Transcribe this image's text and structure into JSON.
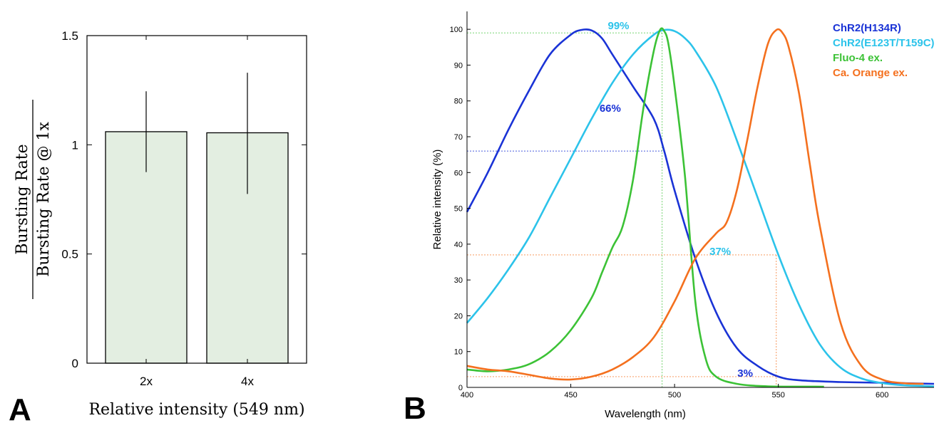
{
  "panels": {
    "a_label": "A",
    "b_label": "B"
  },
  "colors": {
    "bar_fill": "#e3eee1",
    "chr2_h134r": "#1a33d6",
    "chr2_e123t": "#2cc3ea",
    "fluo4": "#3cc236",
    "ca_orange": "#f4701e"
  },
  "chart_data": [
    {
      "type": "bar",
      "categories": [
        "2x",
        "4x"
      ],
      "values": [
        1.06,
        1.055
      ],
      "error_low": [
        0.875,
        0.775
      ],
      "error_high": [
        1.245,
        1.33
      ],
      "ylim": [
        0,
        1.5
      ],
      "yticks": [
        "0",
        "0.5",
        "1",
        "1.5"
      ],
      "xlabel": "Relative intensity (549 nm)",
      "ylabel_numerator": "Bursting Rate",
      "ylabel_denominator": "Bursting Rate @ 1x",
      "grid": false
    },
    {
      "type": "line",
      "xlim": [
        400,
        625
      ],
      "ylim": [
        0,
        105
      ],
      "xticks": [
        "400",
        "450",
        "500",
        "550",
        "600"
      ],
      "yticks": [
        "0",
        "10",
        "20",
        "30",
        "40",
        "50",
        "60",
        "70",
        "80",
        "90",
        "100"
      ],
      "xlabel": "Wavelength (nm)",
      "ylabel": "Relative intensity (%)",
      "legend_placement": "top-right",
      "series": [
        {
          "name": "ChR2(H134R)",
          "color_key": "chr2_h134r",
          "x": [
            400,
            410,
            420,
            430,
            440,
            450,
            455,
            460,
            465,
            470,
            480,
            490,
            495,
            500,
            510,
            520,
            530,
            540,
            550,
            560,
            580,
            600,
            625
          ],
          "y": [
            49,
            60,
            72,
            83,
            93,
            98.5,
            99.8,
            99.7,
            97.5,
            93,
            84,
            75,
            66,
            55,
            36,
            21,
            11,
            6,
            3,
            2,
            1.5,
            1.3,
            1
          ]
        },
        {
          "name": "ChR2(E123T/T159C)",
          "color_key": "chr2_e123t",
          "x": [
            400,
            410,
            420,
            430,
            440,
            450,
            460,
            470,
            480,
            490,
            495,
            500,
            505,
            510,
            520,
            530,
            540,
            550,
            560,
            570,
            580,
            590,
            600,
            610,
            625
          ],
          "y": [
            18,
            25,
            33,
            42,
            53,
            64,
            75,
            85,
            93,
            98.5,
            99.8,
            99.5,
            97.5,
            94,
            84,
            69,
            53,
            37,
            23,
            12,
            5.5,
            2.5,
            1.2,
            0.6,
            0.3
          ]
        },
        {
          "name": "Fluo-4 ex.",
          "color_key": "fluo4",
          "x": [
            400,
            410,
            420,
            430,
            440,
            450,
            460,
            465,
            470,
            475,
            480,
            485,
            490,
            493,
            495,
            497,
            500,
            505,
            510,
            515,
            520,
            530,
            545,
            572
          ],
          "y": [
            5,
            4.5,
            5,
            6.5,
            10,
            16,
            25,
            32,
            39,
            45,
            58,
            78,
            94,
            99.8,
            99.5,
            96,
            84,
            59,
            24,
            8,
            3,
            1,
            0.3,
            0.2
          ]
        },
        {
          "name": "Ca. Orange ex.",
          "color_key": "ca_orange",
          "x": [
            400,
            410,
            420,
            430,
            440,
            450,
            460,
            470,
            480,
            490,
            500,
            510,
            520,
            525,
            530,
            535,
            540,
            545,
            549,
            552,
            555,
            560,
            565,
            570,
            580,
            590,
            600,
            610,
            620
          ],
          "y": [
            6,
            5,
            4.5,
            3.5,
            2.5,
            2.2,
            3,
            5,
            8.5,
            14,
            24,
            36,
            43,
            46,
            55,
            69,
            84,
            96,
            99.8,
            99,
            95,
            82,
            63,
            45,
            18,
            6,
            2.2,
            1.2,
            1
          ]
        }
      ],
      "guides": [
        {
          "color_key": "fluo4",
          "x": 494,
          "y": 99,
          "vertical": true
        },
        {
          "color_key": "chr2_h134r",
          "x": 494,
          "y": 66
        },
        {
          "color_key": "ca_orange",
          "x": 549,
          "y": 37,
          "vertical": true
        },
        {
          "color_key": "ca_orange",
          "x": 549,
          "y": 3
        }
      ],
      "annotations": [
        {
          "text": "99%",
          "color_key": "chr2_e123t",
          "x": 473,
          "y": 101
        },
        {
          "text": "66%",
          "color_key": "chr2_h134r",
          "x": 469,
          "y": 78
        },
        {
          "text": "37%",
          "color_key": "chr2_e123t",
          "x": 522,
          "y": 38
        },
        {
          "text": "3%",
          "color_key": "chr2_h134r",
          "x": 534,
          "y": 4
        }
      ]
    }
  ]
}
